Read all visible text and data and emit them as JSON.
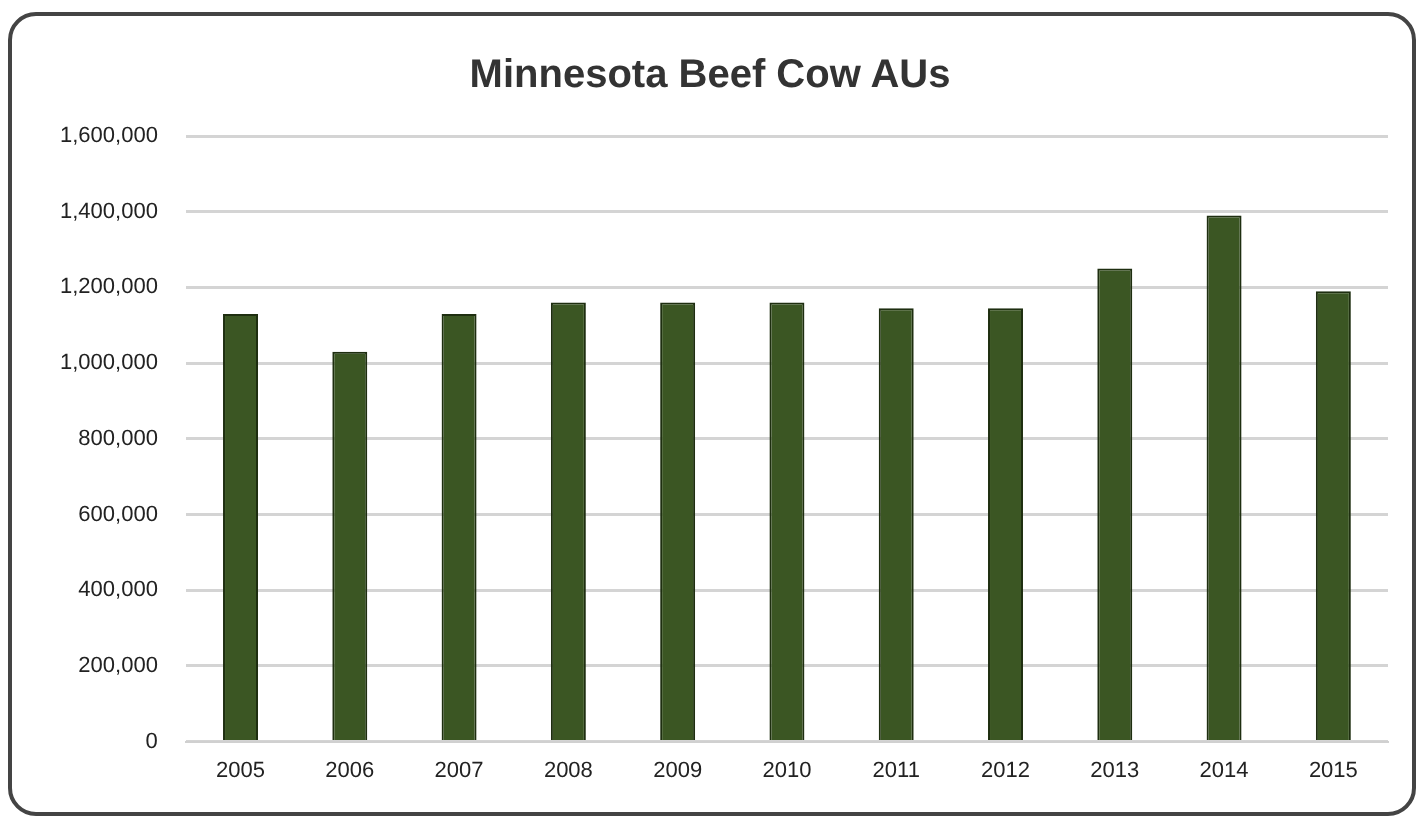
{
  "chart_data": {
    "type": "bar",
    "title": "Minnesota Beef Cow AUs",
    "categories": [
      "2005",
      "2006",
      "2007",
      "2008",
      "2009",
      "2010",
      "2011",
      "2012",
      "2013",
      "2014",
      "2015"
    ],
    "values": [
      1130000,
      1030000,
      1130000,
      1160000,
      1160000,
      1160000,
      1145000,
      1145000,
      1250000,
      1390000,
      1190000
    ],
    "color": "#3b5623",
    "ylim": [
      0,
      1600000
    ],
    "yticks": [
      0,
      {
        "value": 200000,
        "label": "200,000"
      },
      {
        "value": 400000,
        "label": "400,000"
      },
      {
        "value": 600000,
        "label": "600,000"
      },
      {
        "value": 800000,
        "label": "800,000"
      },
      {
        "value": 1000000,
        "label": "1,000,000"
      },
      {
        "value": 1200000,
        "label": "1,200,000"
      },
      {
        "value": 1400000,
        "label": "1,400,000"
      },
      {
        "value": 1600000,
        "label": "1,600,000"
      }
    ],
    "grid": "y",
    "legend": false
  }
}
